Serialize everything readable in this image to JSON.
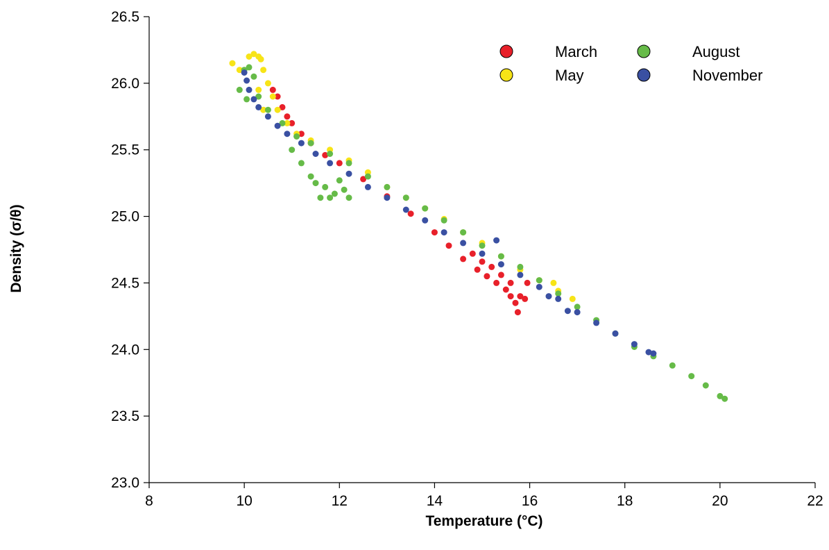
{
  "chart_data": {
    "type": "scatter",
    "title": "",
    "xlabel": "Temperature (°C)",
    "ylabel": "Density (σ/θ)",
    "xlim": [
      8,
      22
    ],
    "ylim": [
      23.0,
      26.5
    ],
    "x_ticks": [
      "8",
      "10",
      "12",
      "14",
      "16",
      "18",
      "20",
      "22"
    ],
    "y_ticks": [
      "23.0",
      "23.5",
      "24.0",
      "24.5",
      "25.0",
      "25.5",
      "26.0",
      "26.5"
    ],
    "grid": false,
    "legend_position": "top-right",
    "series": [
      {
        "name": "March",
        "color": "#e8202a",
        "points": [
          [
            10.6,
            25.95
          ],
          [
            10.7,
            25.9
          ],
          [
            10.8,
            25.82
          ],
          [
            10.9,
            25.75
          ],
          [
            11.0,
            25.7
          ],
          [
            11.2,
            25.62
          ],
          [
            11.4,
            25.55
          ],
          [
            11.7,
            25.46
          ],
          [
            12.0,
            25.4
          ],
          [
            12.5,
            25.28
          ],
          [
            13.0,
            25.15
          ],
          [
            13.5,
            25.02
          ],
          [
            14.0,
            24.88
          ],
          [
            14.3,
            24.78
          ],
          [
            14.6,
            24.68
          ],
          [
            14.9,
            24.6
          ],
          [
            15.1,
            24.55
          ],
          [
            15.3,
            24.5
          ],
          [
            15.5,
            24.45
          ],
          [
            15.6,
            24.4
          ],
          [
            15.7,
            24.35
          ],
          [
            15.75,
            24.28
          ],
          [
            15.8,
            24.4
          ],
          [
            15.9,
            24.38
          ],
          [
            15.4,
            24.56
          ],
          [
            15.2,
            24.62
          ],
          [
            14.8,
            24.72
          ],
          [
            15.6,
            24.5
          ],
          [
            15.95,
            24.5
          ],
          [
            15.0,
            24.66
          ]
        ]
      },
      {
        "name": "May",
        "color": "#f7e417",
        "points": [
          [
            9.75,
            26.15
          ],
          [
            9.9,
            26.1
          ],
          [
            10.1,
            26.2
          ],
          [
            10.2,
            26.22
          ],
          [
            10.3,
            26.2
          ],
          [
            10.35,
            26.18
          ],
          [
            10.4,
            26.1
          ],
          [
            10.5,
            26.0
          ],
          [
            10.6,
            25.9
          ],
          [
            10.3,
            25.95
          ],
          [
            10.4,
            25.8
          ],
          [
            10.7,
            25.8
          ],
          [
            10.9,
            25.7
          ],
          [
            11.1,
            25.62
          ],
          [
            11.4,
            25.57
          ],
          [
            11.8,
            25.5
          ],
          [
            12.2,
            25.42
          ],
          [
            12.6,
            25.33
          ],
          [
            13.0,
            25.22
          ],
          [
            13.4,
            25.14
          ],
          [
            13.8,
            25.06
          ],
          [
            14.2,
            24.98
          ],
          [
            14.6,
            24.88
          ],
          [
            15.0,
            24.8
          ],
          [
            15.4,
            24.7
          ],
          [
            15.8,
            24.6
          ],
          [
            16.2,
            24.52
          ],
          [
            16.6,
            24.44
          ],
          [
            16.9,
            24.38
          ],
          [
            16.5,
            24.5
          ]
        ]
      },
      {
        "name": "August",
        "color": "#66bb48",
        "points": [
          [
            9.9,
            25.95
          ],
          [
            10.0,
            26.1
          ],
          [
            10.1,
            26.12
          ],
          [
            10.2,
            26.05
          ],
          [
            10.05,
            25.88
          ],
          [
            10.3,
            25.9
          ],
          [
            10.5,
            25.8
          ],
          [
            10.8,
            25.7
          ],
          [
            11.1,
            25.6
          ],
          [
            11.4,
            25.55
          ],
          [
            11.8,
            25.47
          ],
          [
            12.2,
            25.4
          ],
          [
            12.6,
            25.3
          ],
          [
            13.0,
            25.22
          ],
          [
            13.4,
            25.14
          ],
          [
            13.8,
            25.06
          ],
          [
            14.2,
            24.97
          ],
          [
            14.6,
            24.88
          ],
          [
            15.0,
            24.78
          ],
          [
            15.4,
            24.7
          ],
          [
            15.8,
            24.62
          ],
          [
            16.2,
            24.52
          ],
          [
            16.6,
            24.42
          ],
          [
            17.0,
            24.32
          ],
          [
            17.4,
            24.22
          ],
          [
            17.8,
            24.12
          ],
          [
            18.2,
            24.02
          ],
          [
            18.6,
            23.95
          ],
          [
            19.0,
            23.88
          ],
          [
            19.4,
            23.8
          ],
          [
            19.7,
            23.73
          ],
          [
            20.0,
            23.65
          ],
          [
            20.1,
            23.63
          ],
          [
            11.0,
            25.5
          ],
          [
            11.2,
            25.4
          ],
          [
            11.4,
            25.3
          ],
          [
            11.5,
            25.25
          ],
          [
            11.7,
            25.22
          ],
          [
            11.9,
            25.17
          ],
          [
            11.8,
            25.14
          ],
          [
            12.1,
            25.2
          ],
          [
            12.2,
            25.14
          ],
          [
            11.6,
            25.14
          ],
          [
            12.0,
            25.27
          ]
        ]
      },
      {
        "name": "November",
        "color": "#3a50a2",
        "points": [
          [
            10.0,
            26.08
          ],
          [
            10.05,
            26.02
          ],
          [
            10.1,
            25.95
          ],
          [
            10.2,
            25.88
          ],
          [
            10.3,
            25.82
          ],
          [
            10.5,
            25.75
          ],
          [
            10.7,
            25.68
          ],
          [
            10.9,
            25.62
          ],
          [
            11.2,
            25.55
          ],
          [
            11.5,
            25.47
          ],
          [
            11.8,
            25.4
          ],
          [
            12.2,
            25.32
          ],
          [
            12.6,
            25.22
          ],
          [
            13.0,
            25.14
          ],
          [
            13.4,
            25.05
          ],
          [
            13.8,
            24.97
          ],
          [
            14.2,
            24.88
          ],
          [
            14.6,
            24.8
          ],
          [
            15.0,
            24.72
          ],
          [
            15.4,
            24.64
          ],
          [
            15.8,
            24.56
          ],
          [
            16.2,
            24.47
          ],
          [
            16.6,
            24.38
          ],
          [
            17.0,
            24.28
          ],
          [
            17.4,
            24.2
          ],
          [
            17.8,
            24.12
          ],
          [
            18.2,
            24.04
          ],
          [
            18.5,
            23.98
          ],
          [
            18.6,
            23.97
          ],
          [
            15.3,
            24.82
          ],
          [
            16.8,
            24.29
          ],
          [
            16.4,
            24.4
          ]
        ]
      }
    ]
  }
}
